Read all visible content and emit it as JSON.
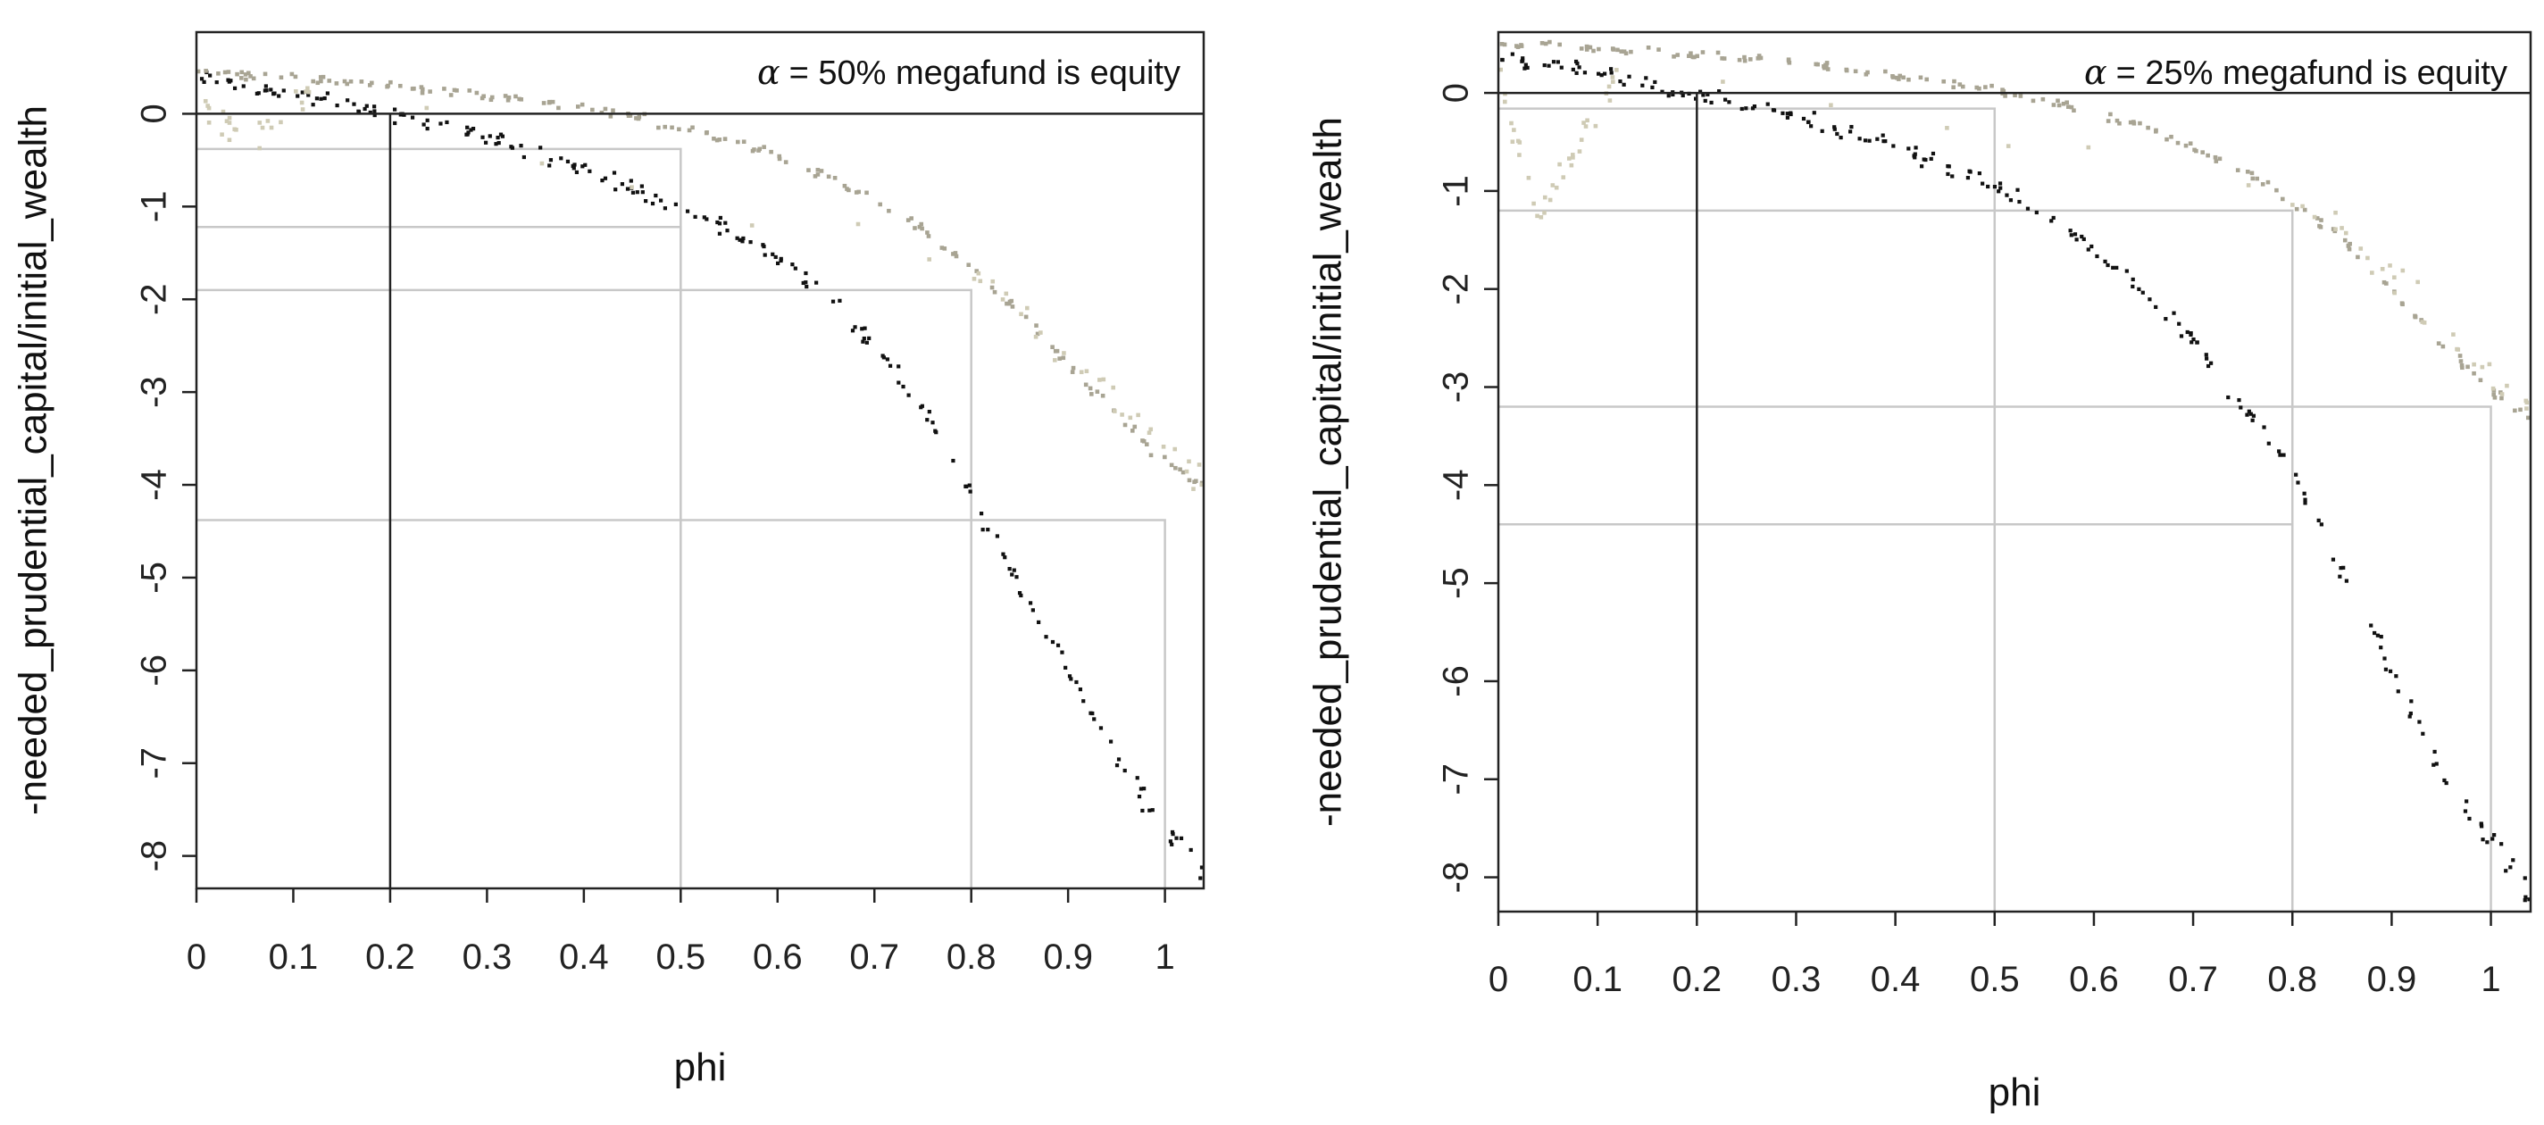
{
  "colors": {
    "black_series": "#111111",
    "gray_series": "#a8a493",
    "light_series": "#cfcbb5",
    "ref_line": "#222222",
    "guide_line": "#c8c8c8"
  },
  "chart_data": [
    {
      "type": "scatter",
      "annotation": {
        "alpha": "α",
        "text": "= 50% megafund is equity"
      },
      "xlabel": "phi",
      "ylabel": "-needed_prudential_capital/initial_wealth",
      "xlim": [
        0,
        1.04
      ],
      "ylim": [
        -8.35,
        0.88
      ],
      "xticks": [
        "0",
        "0.1",
        "0.2",
        "0.3",
        "0.4",
        "0.5",
        "0.6",
        "0.7",
        "0.8",
        "0.9",
        "1"
      ],
      "yticks": [
        "0",
        "-1",
        "-2",
        "-3",
        "-4",
        "-5",
        "-6",
        "-7",
        "-8"
      ],
      "reference_lines": {
        "horizontal_y": 0,
        "vertical_x": 0.2
      },
      "guides": [
        {
          "x": 0.5,
          "y": -0.38
        },
        {
          "x": 0.5,
          "y": -1.22
        },
        {
          "x": 0.8,
          "y": -1.9
        },
        {
          "x": 1.0,
          "y": -4.38
        }
      ],
      "series": [
        {
          "x": [
            0,
            0.05,
            0.1,
            0.15,
            0.2,
            0.25,
            0.3,
            0.35,
            0.4,
            0.45,
            0.5,
            0.55,
            0.6,
            0.65,
            0.7,
            0.75,
            0.8,
            0.85,
            0.9,
            0.95,
            1.0,
            1.04
          ],
          "y": [
            0.38,
            0.3,
            0.2,
            0.1,
            0.0,
            -0.12,
            -0.26,
            -0.42,
            -0.6,
            -0.8,
            -1.0,
            -1.25,
            -1.55,
            -1.95,
            -2.5,
            -3.2,
            -4.1,
            -5.1,
            -6.0,
            -6.9,
            -7.7,
            -8.1
          ]
        },
        {
          "x": [
            0,
            0.05,
            0.1,
            0.15,
            0.2,
            0.25,
            0.3,
            0.35,
            0.4,
            0.45,
            0.5,
            0.55,
            0.6,
            0.65,
            0.7,
            0.75,
            0.8,
            0.85,
            0.9,
            0.95,
            1.0,
            1.04
          ],
          "y": [
            0.45,
            0.42,
            0.38,
            0.34,
            0.3,
            0.25,
            0.2,
            0.14,
            0.06,
            -0.03,
            -0.14,
            -0.28,
            -0.45,
            -0.66,
            -0.92,
            -1.25,
            -1.65,
            -2.15,
            -2.7,
            -3.25,
            -3.75,
            -4.0
          ]
        },
        {
          "x": [
            0,
            0.03,
            0.06,
            0.09,
            0.12,
            0.8,
            0.85,
            0.9,
            0.95,
            1.0,
            1.04
          ],
          "y": [
            0.2,
            -0.1,
            -0.25,
            0.0,
            0.25,
            -1.7,
            -2.1,
            -2.6,
            -3.1,
            -3.6,
            -3.9
          ]
        }
      ]
    },
    {
      "type": "scatter",
      "annotation": {
        "alpha": "α",
        "text": "= 25% megafund is equity"
      },
      "xlabel": "phi",
      "ylabel": "-needed_prudential_capital/initial_wealth",
      "xlim": [
        0,
        1.04
      ],
      "ylim": [
        -8.35,
        0.62
      ],
      "xticks": [
        "0",
        "0.1",
        "0.2",
        "0.3",
        "0.4",
        "0.5",
        "0.6",
        "0.7",
        "0.8",
        "0.9",
        "1"
      ],
      "yticks": [
        "0",
        "-1",
        "-2",
        "-3",
        "-4",
        "-5",
        "-6",
        "-7",
        "-8"
      ],
      "reference_lines": {
        "horizontal_y": 0,
        "vertical_x": 0.2
      },
      "guides": [
        {
          "x": 0.5,
          "y": -0.16
        },
        {
          "x": 0.8,
          "y": -1.2
        },
        {
          "x": 1.0,
          "y": -3.2
        },
        {
          "x": 0.8,
          "y": -4.4
        }
      ],
      "series": [
        {
          "x": [
            0,
            0.05,
            0.1,
            0.15,
            0.2,
            0.25,
            0.3,
            0.35,
            0.4,
            0.45,
            0.5,
            0.55,
            0.6,
            0.65,
            0.7,
            0.75,
            0.8,
            0.85,
            0.9,
            0.95,
            1.0,
            1.04
          ],
          "y": [
            0.38,
            0.28,
            0.18,
            0.08,
            -0.02,
            -0.12,
            -0.24,
            -0.38,
            -0.55,
            -0.75,
            -0.98,
            -1.25,
            -1.58,
            -2.0,
            -2.55,
            -3.2,
            -3.9,
            -4.9,
            -5.9,
            -6.9,
            -7.7,
            -8.2
          ]
        },
        {
          "x": [
            0,
            0.05,
            0.1,
            0.15,
            0.2,
            0.25,
            0.3,
            0.35,
            0.4,
            0.45,
            0.5,
            0.55,
            0.6,
            0.65,
            0.7,
            0.75,
            0.8,
            0.85,
            0.9,
            0.95,
            1.0,
            1.04
          ],
          "y": [
            0.5,
            0.48,
            0.45,
            0.42,
            0.38,
            0.34,
            0.3,
            0.25,
            0.18,
            0.1,
            0.02,
            -0.08,
            -0.2,
            -0.35,
            -0.55,
            -0.8,
            -1.1,
            -1.5,
            -2.0,
            -2.55,
            -3.05,
            -3.35
          ]
        },
        {
          "x": [
            0,
            0.02,
            0.04,
            0.06,
            0.08,
            0.1,
            0.12,
            0.8,
            0.85,
            0.9,
            0.95,
            1.0,
            1.04
          ],
          "y": [
            0.3,
            -0.6,
            -1.3,
            -0.9,
            -0.5,
            -0.2,
            0.2,
            -1.0,
            -1.4,
            -1.9,
            -2.4,
            -2.9,
            -3.2
          ]
        }
      ]
    }
  ]
}
